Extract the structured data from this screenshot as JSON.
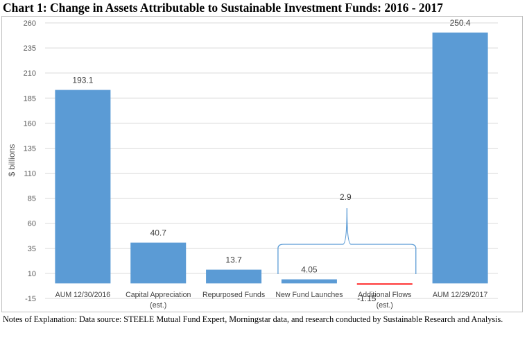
{
  "chart_data": {
    "type": "bar",
    "title": "Chart 1:  Change in Assets Attributable to Sustainable Investment Funds:  2016 - 2017",
    "ylabel": "$ billions",
    "ylim": [
      -15,
      260
    ],
    "yticks": [
      "260",
      "235",
      "210",
      "185",
      "160",
      "135",
      "110",
      "85",
      "60",
      "35",
      "10",
      "-15"
    ],
    "ytick_values": [
      260,
      235,
      210,
      185,
      160,
      135,
      110,
      85,
      60,
      35,
      10,
      -15
    ],
    "categories": [
      {
        "line1": "AUM 12/30/2016",
        "line2": ""
      },
      {
        "line1": "Capital Appreciation",
        "line2": "(est.)"
      },
      {
        "line1": "Repurposed Funds",
        "line2": ""
      },
      {
        "line1": "New Fund Launches",
        "line2": ""
      },
      {
        "line1": "Additional Flows",
        "line2": "(est.)"
      },
      {
        "line1": "AUM 12/29/2017",
        "line2": ""
      }
    ],
    "values": [
      193.1,
      40.7,
      13.7,
      4.05,
      -1.15,
      250.4
    ],
    "data_labels": [
      "193.1",
      "40.7",
      "13.7",
      "4.05",
      "-1.15",
      "250.4"
    ],
    "bar_colors": [
      "#5b9bd5",
      "#5b9bd5",
      "#5b9bd5",
      "#5b9bd5",
      "#ff0000",
      "#5b9bd5"
    ],
    "annotation": {
      "label": "2.9",
      "spans_categories": [
        3,
        4
      ],
      "color": "#5b9bd5"
    },
    "grid": true,
    "legend": "none"
  },
  "notes": "Notes of Explanation:  Data source:  STEELE Mutual Fund Expert, Morningstar data, and research conducted by Sustainable Research and Analysis."
}
